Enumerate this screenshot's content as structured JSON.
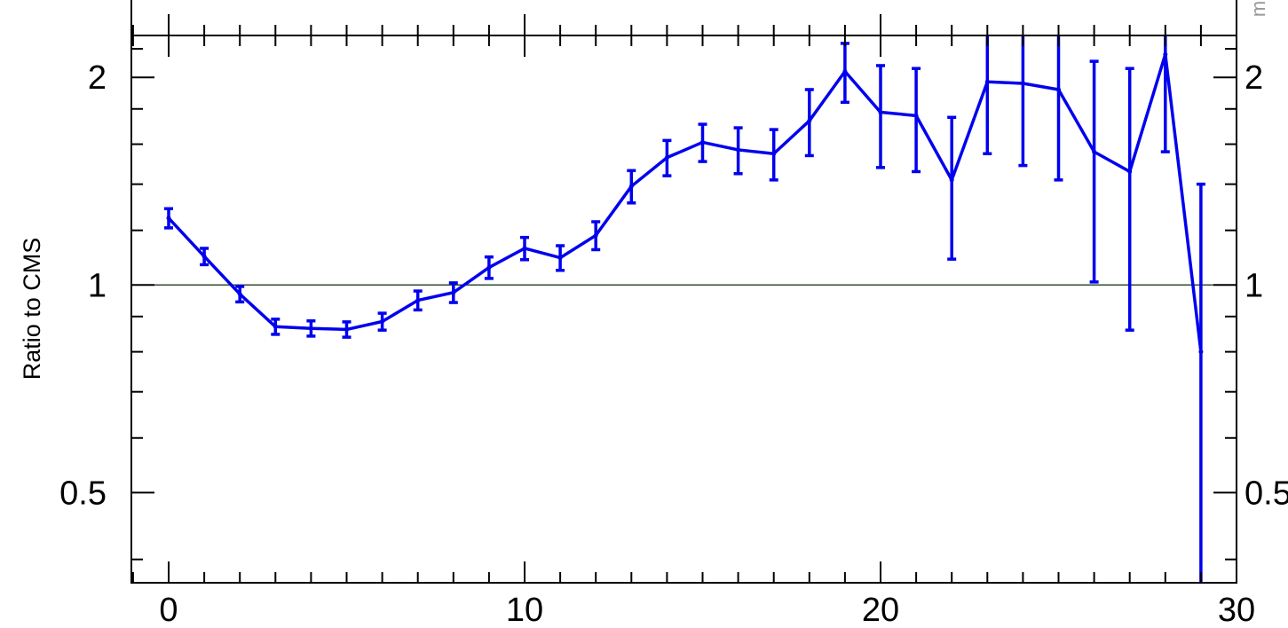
{
  "chart_data": {
    "type": "line",
    "title": "",
    "xlabel": "",
    "ylabel": "Ratio to CMS",
    "xlim": [
      -1.1,
      30
    ],
    "ylim": [
      0.37,
      2.3
    ],
    "y_scale": "log",
    "x_ticks_major": [
      0,
      10,
      20,
      30
    ],
    "x_tick_labels": [
      "0",
      "10",
      "20",
      "30"
    ],
    "y_ticks_labeled": [
      0.5,
      1,
      2
    ],
    "y_tick_labels_left": [
      "0.5",
      "1",
      "2"
    ],
    "y_tick_labels_right": [
      "0.5",
      "1",
      "2"
    ],
    "reference_line": 1,
    "corner_text": "m",
    "grid": false,
    "series": [
      {
        "color": "#0000ee",
        "x": [
          0,
          1,
          2,
          3,
          4,
          5,
          6,
          7,
          8,
          9,
          10,
          11,
          12,
          13,
          14,
          15,
          16,
          17,
          18,
          19,
          20,
          21,
          22,
          23,
          24,
          25,
          26,
          27,
          28,
          29
        ],
        "y": [
          1.25,
          1.1,
          0.97,
          0.87,
          0.865,
          0.862,
          0.885,
          0.95,
          0.975,
          1.06,
          1.13,
          1.095,
          1.18,
          1.39,
          1.53,
          1.61,
          1.57,
          1.55,
          1.73,
          2.04,
          1.78,
          1.76,
          1.42,
          1.97,
          1.96,
          1.92,
          1.56,
          1.46,
          2.16,
          0.8
        ],
        "y_err": [
          0.04,
          0.03,
          0.025,
          0.022,
          0.022,
          0.022,
          0.025,
          0.03,
          0.032,
          0.038,
          0.042,
          0.045,
          0.055,
          0.075,
          0.09,
          0.1,
          0.12,
          0.13,
          0.19,
          0.2,
          0.3,
          0.3,
          0.33,
          0.42,
          0.47,
          0.5,
          0.55,
          0.6,
          0.6,
          0.6
        ]
      }
    ]
  }
}
